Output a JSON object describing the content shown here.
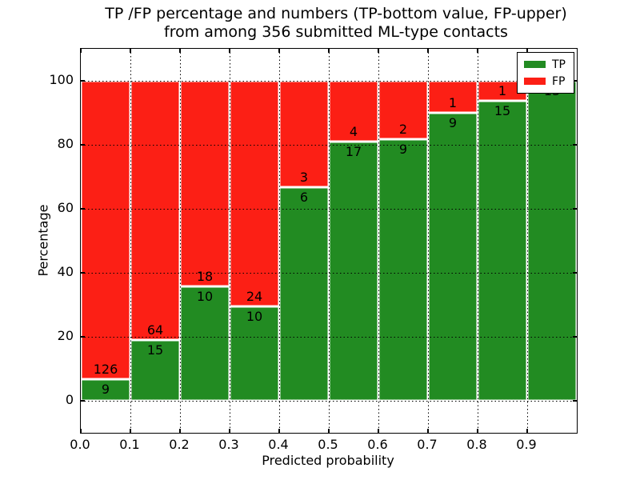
{
  "title": {
    "line1": "TP /FP percentage and numbers (TP-bottom value, FP-upper)",
    "line2": "from among 356 submitted ML-type contacts"
  },
  "axes": {
    "xlabel": "Predicted probability",
    "ylabel": "Percentage",
    "xticks": [
      "0.0",
      "0.1",
      "0.2",
      "0.3",
      "0.4",
      "0.5",
      "0.6",
      "0.7",
      "0.8",
      "0.9"
    ],
    "yticks": [
      "0",
      "20",
      "40",
      "60",
      "80",
      "100"
    ],
    "xlim": [
      0.0,
      1.0
    ],
    "ylim": [
      -10,
      110
    ],
    "grid_style": "dotted",
    "grid_color": "#000000"
  },
  "legend": {
    "position": "upper-right",
    "items": [
      {
        "label": "TP",
        "color": "#228b22"
      },
      {
        "label": "FP",
        "color": "#fc1f15"
      }
    ]
  },
  "chart_data": {
    "type": "bar",
    "stacked": true,
    "normalized_to_percent": true,
    "title": "TP /FP percentage and numbers (TP-bottom value, FP-upper) from among 356 submitted ML-type contacts",
    "xlabel": "Predicted probability",
    "ylabel": "Percentage",
    "total_contacts": 356,
    "bin_edges": [
      0.0,
      0.1,
      0.2,
      0.3,
      0.4,
      0.5,
      0.6,
      0.7,
      0.8,
      0.9,
      1.0
    ],
    "categories": [
      "0.0-0.1",
      "0.1-0.2",
      "0.2-0.3",
      "0.3-0.4",
      "0.4-0.5",
      "0.5-0.6",
      "0.6-0.7",
      "0.7-0.8",
      "0.8-0.9",
      "0.9-1.0"
    ],
    "series": [
      {
        "name": "TP",
        "color": "#228b22",
        "counts": [
          9,
          15,
          10,
          10,
          6,
          17,
          9,
          9,
          15,
          13
        ]
      },
      {
        "name": "FP",
        "color": "#fc1f15",
        "counts": [
          126,
          64,
          18,
          24,
          3,
          4,
          2,
          1,
          1,
          0
        ]
      }
    ],
    "tp_percent": [
      6.7,
      19.0,
      35.7,
      29.4,
      66.7,
      81.0,
      81.8,
      90.0,
      93.8,
      100.0
    ]
  },
  "colors": {
    "tp": "#228b22",
    "fp": "#fc1f15",
    "bar_edge": "#ffffff",
    "grid": "#000000",
    "background": "#ffffff",
    "spine": "#000000"
  }
}
